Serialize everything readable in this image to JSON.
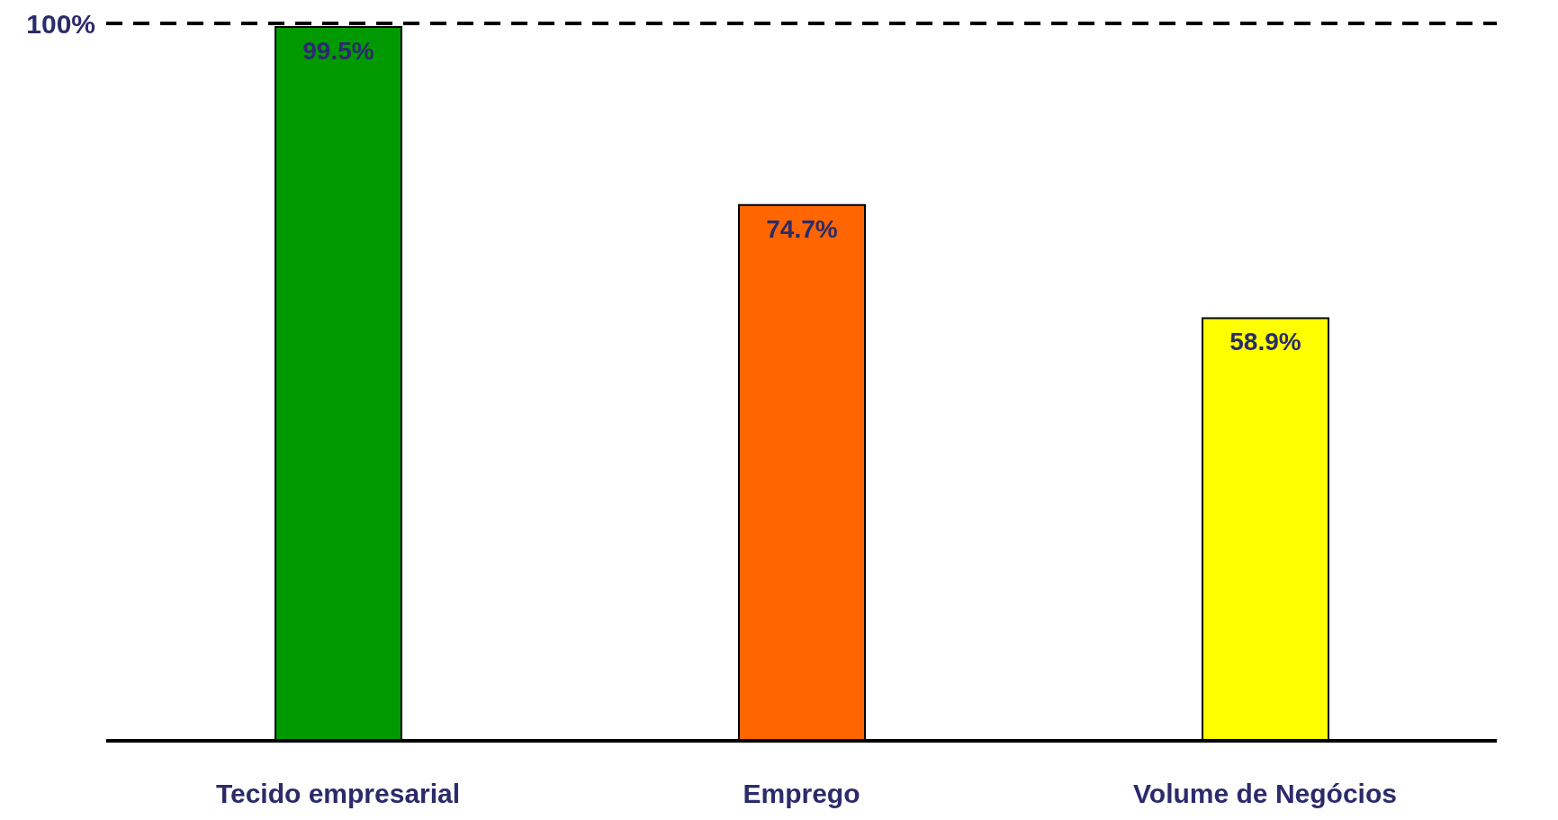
{
  "chart_data": {
    "type": "bar",
    "categories": [
      "Tecido empresarial",
      "Emprego",
      "Volume de Negócios"
    ],
    "values": [
      99.5,
      74.7,
      58.9
    ],
    "colors": [
      "#009900",
      "#ff6600",
      "#ffff00"
    ],
    "value_labels": [
      "99.5%",
      "74.7%",
      "58.9%"
    ],
    "ylim": [
      0,
      100
    ],
    "ref_lines": [
      {
        "axis": "y",
        "value": 100,
        "label": "100%",
        "color": "#000000",
        "line_style": "dashed"
      }
    ]
  }
}
